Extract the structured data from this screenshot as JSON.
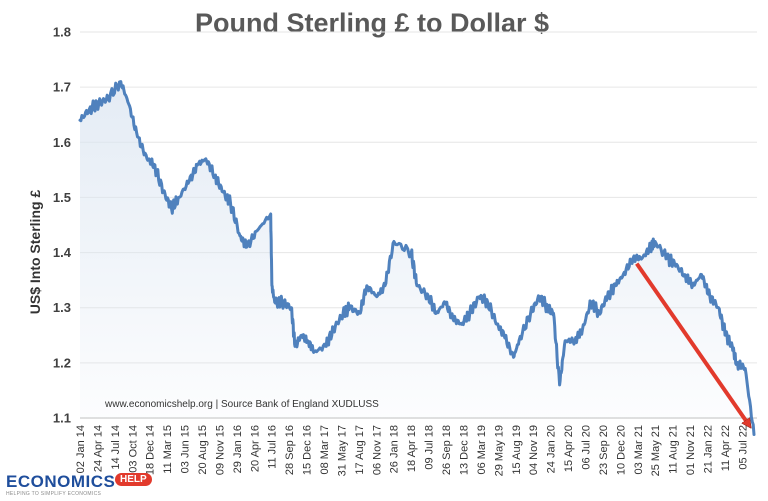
{
  "chart_data": {
    "type": "line",
    "title": "Pound Sterling £ to Dollar $",
    "ylabel": "US$ Into Sterling £",
    "xlabel": "",
    "ylim": [
      1.1,
      1.8
    ],
    "yticks": [
      "1.1",
      "1.2",
      "1.3",
      "1.4",
      "1.5",
      "1.6",
      "1.7",
      "1.8"
    ],
    "xticks": [
      "02 Jan 14",
      "24 Apr 14",
      "14 Jul 14",
      "03 Oct 14",
      "18 Dec 14",
      "11 Mar 15",
      "03 Jun 15",
      "20 Aug 15",
      "09 Nov 15",
      "29 Jan 16",
      "20 Apr 16",
      "11 Jul 16",
      "28 Sep 16",
      "15 Dec 16",
      "08 Mar 17",
      "31 May 17",
      "17 Aug 17",
      "06 Nov 17",
      "26 Jan 18",
      "18 Apr 18",
      "09 Jul 18",
      "26 Sep 18",
      "13 Dec 18",
      "06 Mar 19",
      "29 May 19",
      "15 Aug 19",
      "04 Nov 19",
      "24 Jan 20",
      "15 Apr 20",
      "06 Jul 20",
      "23 Sep 20",
      "10 Dec 20",
      "03 Mar 21",
      "25 May 21",
      "11 Aug 21",
      "01 Nov 21",
      "21 Jan 22",
      "11 Apr 22",
      "05 Jul 22"
    ],
    "grid": true,
    "grid_axis": "y",
    "legend": "none",
    "line_color": "#4f81bd",
    "series": [
      {
        "x": [
          "2014-01-02",
          "2014-02-15",
          "2014-04-01",
          "2014-05-15",
          "2014-07-14",
          "2014-08-20",
          "2014-10-01",
          "2014-11-15",
          "2014-12-18",
          "2015-02-01",
          "2015-03-11",
          "2015-04-15",
          "2015-06-03",
          "2015-07-15",
          "2015-08-20",
          "2015-10-01",
          "2015-11-09",
          "2015-12-15",
          "2016-01-29",
          "2016-03-01",
          "2016-04-20",
          "2016-06-22",
          "2016-06-28",
          "2016-07-11",
          "2016-08-15",
          "2016-09-28",
          "2016-10-15",
          "2016-11-15",
          "2016-12-15",
          "2017-01-15",
          "2017-03-08",
          "2017-04-15",
          "2017-05-31",
          "2017-07-01",
          "2017-08-17",
          "2017-09-20",
          "2017-11-06",
          "2017-12-15",
          "2018-01-26",
          "2018-04-18",
          "2018-05-15",
          "2018-07-09",
          "2018-08-15",
          "2018-09-26",
          "2018-11-01",
          "2018-12-13",
          "2019-01-20",
          "2019-03-06",
          "2019-04-15",
          "2019-05-29",
          "2019-07-01",
          "2019-08-15",
          "2019-09-10",
          "2019-11-04",
          "2019-12-15",
          "2020-01-24",
          "2020-02-20",
          "2020-03-20",
          "2020-04-15",
          "2020-06-01",
          "2020-07-06",
          "2020-08-15",
          "2020-09-23",
          "2020-11-01",
          "2020-12-10",
          "2021-01-15",
          "2021-03-03",
          "2021-04-15",
          "2021-05-25",
          "2021-06-15",
          "2021-08-11",
          "2021-09-15",
          "2021-11-01",
          "2021-12-10",
          "2022-01-21",
          "2022-03-01",
          "2022-04-11",
          "2022-05-15",
          "2022-06-15",
          "2022-07-05",
          "2022-08-15",
          "2022-09-26"
        ],
        "y": [
          1.64,
          1.66,
          1.67,
          1.68,
          1.71,
          1.67,
          1.61,
          1.57,
          1.56,
          1.51,
          1.48,
          1.5,
          1.53,
          1.56,
          1.57,
          1.54,
          1.51,
          1.49,
          1.43,
          1.41,
          1.44,
          1.47,
          1.34,
          1.31,
          1.31,
          1.3,
          1.23,
          1.25,
          1.24,
          1.22,
          1.23,
          1.26,
          1.29,
          1.3,
          1.29,
          1.34,
          1.32,
          1.34,
          1.42,
          1.4,
          1.34,
          1.32,
          1.29,
          1.31,
          1.28,
          1.27,
          1.29,
          1.32,
          1.31,
          1.27,
          1.25,
          1.21,
          1.24,
          1.29,
          1.32,
          1.3,
          1.29,
          1.16,
          1.24,
          1.24,
          1.26,
          1.31,
          1.29,
          1.32,
          1.34,
          1.36,
          1.39,
          1.39,
          1.41,
          1.42,
          1.39,
          1.38,
          1.36,
          1.34,
          1.36,
          1.32,
          1.3,
          1.25,
          1.23,
          1.2,
          1.19,
          1.07
        ]
      }
    ],
    "annotations": [
      {
        "text": "www.economicshelp.org  |  Source Bank of England XUDLUSS"
      },
      {
        "type": "arrow",
        "color": "#e23a2c",
        "from": {
          "x": "2021-03-20",
          "y": 1.38
        },
        "to": {
          "x": "2022-08-28",
          "y": 1.09
        }
      }
    ]
  },
  "logo": {
    "text": "ECONOMICS",
    "badge": "HELP",
    "tagline": "HELPING TO SIMPLIFY ECONOMICS"
  }
}
